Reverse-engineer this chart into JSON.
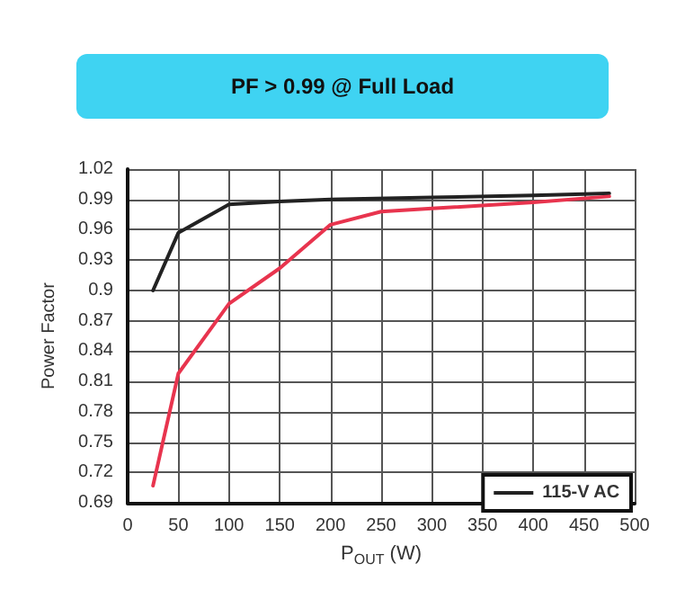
{
  "chart_data": {
    "type": "line",
    "title": "PF > 0.99 @ Full Load",
    "xlabel": "P$_{OUT}$ (W)",
    "ylabel": "Power Factor",
    "series": [
      {
        "name": "115-V AC",
        "color": "#222222",
        "x": [
          25,
          50,
          100,
          150,
          200,
          300,
          400,
          475
        ],
        "values": [
          0.9,
          0.957,
          0.985,
          0.988,
          0.99,
          0.992,
          0.994,
          0.996
        ]
      },
      {
        "color": "#e8344e",
        "x": [
          25,
          50,
          100,
          150,
          200,
          250,
          300,
          400,
          475
        ],
        "values": [
          0.707,
          0.818,
          0.887,
          0.922,
          0.965,
          0.978,
          0.981,
          0.987,
          0.993
        ]
      }
    ],
    "xlim": [
      0,
      500
    ],
    "xticks": [
      0,
      50,
      100,
      150,
      200,
      250,
      300,
      350,
      400,
      450,
      500
    ],
    "ylim": [
      0.69,
      1.02
    ],
    "yticks": [
      0.69,
      0.72,
      0.75,
      0.78,
      0.81,
      0.84,
      0.87,
      0.9,
      0.93,
      0.96,
      0.99,
      1.02
    ],
    "grid": true,
    "legend": "bottom right",
    "marker": "none",
    "line_style": "solid"
  }
}
